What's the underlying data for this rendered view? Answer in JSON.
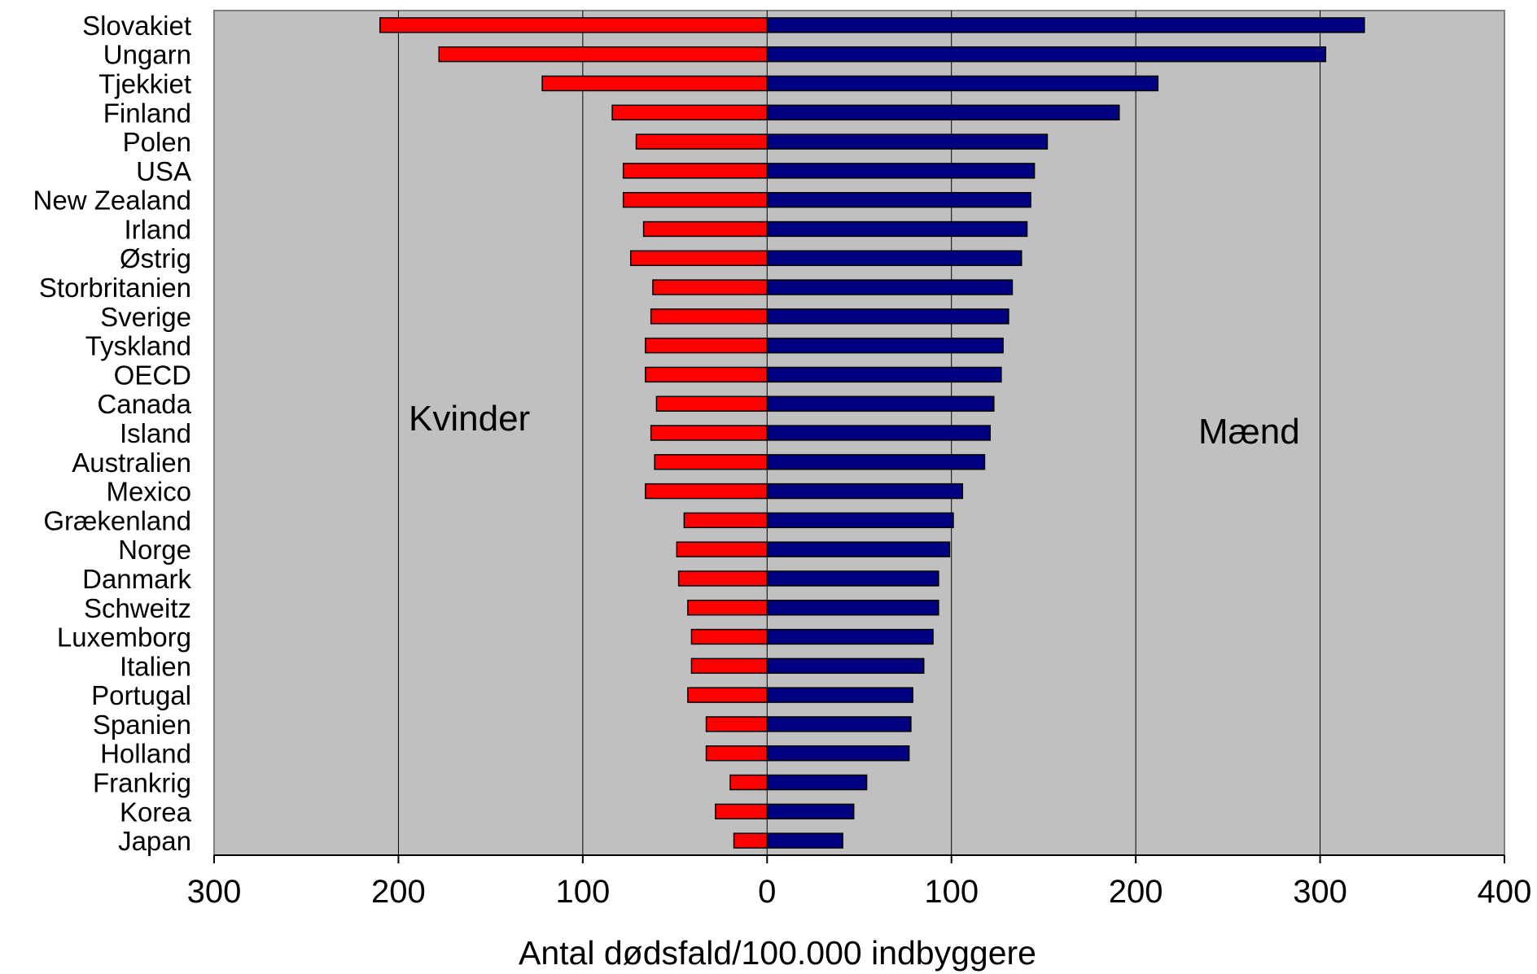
{
  "chart_data": {
    "type": "bar",
    "orientation": "horizontal-diverging",
    "categories": [
      "Slovakiet",
      "Ungarn",
      "Tjekkiet",
      "Finland",
      "Polen",
      "USA",
      "New Zealand",
      "Irland",
      "Østrig",
      "Storbritanien",
      "Sverige",
      "Tyskland",
      "OECD",
      "Canada",
      "Island",
      "Australien",
      "Mexico",
      "Grækenland",
      "Norge",
      "Danmark",
      "Schweitz",
      "Luxemborg",
      "Italien",
      "Portugal",
      "Spanien",
      "Holland",
      "Frankrig",
      "Korea",
      "Japan"
    ],
    "series": [
      {
        "name": "Kvinder",
        "color": "#ff0000",
        "values": [
          210,
          178,
          122,
          84,
          71,
          78,
          78,
          67,
          74,
          62,
          63,
          66,
          66,
          60,
          63,
          61,
          66,
          45,
          49,
          48,
          43,
          41,
          41,
          43,
          33,
          33,
          20,
          28,
          18
        ]
      },
      {
        "name": "Mænd",
        "color": "#000080",
        "values": [
          324,
          303,
          212,
          191,
          152,
          145,
          143,
          141,
          138,
          133,
          131,
          128,
          127,
          123,
          121,
          118,
          106,
          101,
          99,
          93,
          93,
          90,
          85,
          79,
          78,
          77,
          54,
          47,
          41
        ]
      }
    ],
    "xlim": [
      -300,
      400
    ],
    "xticks": [
      -300,
      -200,
      -100,
      0,
      100,
      200,
      300,
      400
    ],
    "xtick_labels": [
      "300",
      "200",
      "100",
      "0",
      "100",
      "200",
      "300",
      "400"
    ],
    "xlabel": "Antal dødsfald/100.000 indbyggere",
    "title": "",
    "annotations": {
      "left": "Kvinder",
      "right": "Mænd"
    },
    "grid": true,
    "plot_background": "#c0c0c0"
  }
}
